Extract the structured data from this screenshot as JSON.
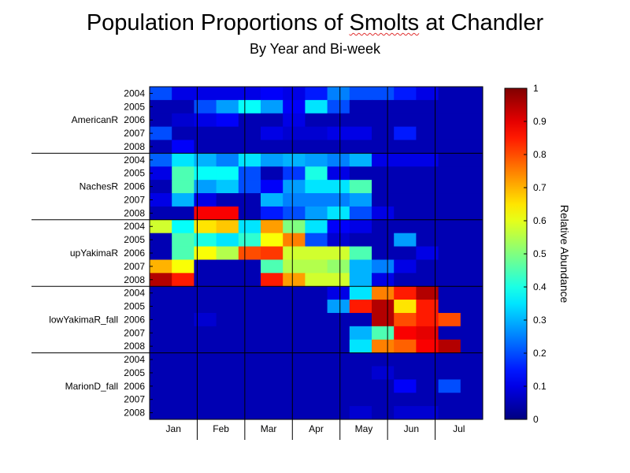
{
  "chart_data": {
    "type": "heatmap",
    "title_parts": [
      "Population Proportions of ",
      "Smolts",
      " at Chandler"
    ],
    "subtitle": "By Year and Bi-week",
    "xlabel": "",
    "ylabel": "",
    "months": [
      "Jan",
      "Feb",
      "Mar",
      "Apr",
      "May",
      "Jun",
      "Jul"
    ],
    "groups": [
      {
        "name": "AmericanR"
      },
      {
        "name": "NachesR"
      },
      {
        "name": "upYakimaR"
      },
      {
        "name": "lowYakimaR_fall"
      },
      {
        "name": "MarionD_fall"
      }
    ],
    "years": [
      "2004",
      "2005",
      "2006",
      "2007",
      "2008"
    ],
    "colorbar": {
      "label": "Relative Abundance",
      "min": 0,
      "max": 1,
      "ticks": [
        "0",
        "0.1",
        "0.2",
        "0.3",
        "0.4",
        "0.5",
        "0.6",
        "0.7",
        "0.8",
        "0.9",
        "1"
      ]
    },
    "colormap": "jet",
    "values": [
      [
        0.2,
        0.1,
        0.1,
        0.1,
        0.1,
        0.12,
        0.1,
        0.15,
        0.25,
        0.2,
        0.2,
        0.15,
        0.1,
        0.05,
        0.05
      ],
      [
        0.05,
        0.05,
        0.2,
        0.28,
        0.38,
        0.28,
        0.12,
        0.35,
        0.2,
        0.05,
        0.05,
        0.05,
        0.05,
        0.05,
        0.05
      ],
      [
        0.05,
        0.08,
        0.1,
        0.12,
        0.05,
        0.05,
        0.1,
        0.05,
        0.05,
        0.05,
        0.05,
        0.05,
        0.05,
        0.05,
        0.05
      ],
      [
        0.2,
        0.05,
        0.05,
        0.05,
        0.05,
        0.1,
        0.08,
        0.08,
        0.1,
        0.1,
        0.05,
        0.15,
        0.05,
        0.05,
        0.05
      ],
      [
        0.05,
        0.12,
        0.05,
        0.05,
        0.05,
        0.05,
        0.05,
        0.05,
        0.05,
        0.05,
        0.05,
        0.05,
        0.05,
        0.05,
        0.05
      ],
      [
        0.22,
        0.35,
        0.3,
        0.25,
        0.35,
        0.28,
        0.3,
        0.28,
        0.25,
        0.3,
        0.1,
        0.1,
        0.1,
        0.05,
        0.05
      ],
      [
        0.1,
        0.45,
        0.38,
        0.38,
        0.2,
        0.05,
        0.18,
        0.4,
        0.1,
        0.05,
        0.05,
        0.05,
        0.05,
        0.05,
        0.05
      ],
      [
        0.05,
        0.45,
        0.28,
        0.32,
        0.2,
        0.12,
        0.28,
        0.35,
        0.35,
        0.45,
        0.05,
        0.05,
        0.05,
        0.05,
        0.05
      ],
      [
        0.1,
        0.3,
        0.1,
        0.05,
        0.05,
        0.3,
        0.25,
        0.25,
        0.25,
        0.28,
        0.05,
        0.05,
        0.05,
        0.05,
        0.05
      ],
      [
        0.05,
        0.05,
        0.88,
        0.88,
        0.05,
        0.15,
        0.2,
        0.28,
        0.35,
        0.2,
        0.1,
        0.05,
        0.05,
        0.05,
        0.05
      ],
      [
        0.58,
        0.38,
        0.65,
        0.68,
        0.35,
        0.72,
        0.5,
        0.35,
        0.12,
        0.1,
        0.05,
        0.05,
        0.05,
        0.05,
        0.05
      ],
      [
        0.05,
        0.45,
        0.4,
        0.35,
        0.42,
        0.62,
        0.75,
        0.2,
        0.08,
        0.05,
        0.05,
        0.28,
        0.05,
        0.05,
        0.05
      ],
      [
        0.05,
        0.45,
        0.62,
        0.55,
        0.8,
        0.82,
        0.58,
        0.58,
        0.58,
        0.45,
        0.05,
        0.05,
        0.1,
        0.05,
        0.05
      ],
      [
        0.7,
        0.62,
        0.05,
        0.05,
        0.05,
        0.45,
        0.55,
        0.55,
        0.52,
        0.3,
        0.25,
        0.1,
        0.05,
        0.05,
        0.05
      ],
      [
        0.95,
        0.85,
        0.05,
        0.05,
        0.05,
        0.85,
        0.72,
        0.58,
        0.58,
        0.3,
        0.1,
        0.05,
        0.05,
        0.05,
        0.05
      ],
      [
        0.05,
        0.05,
        0.05,
        0.05,
        0.05,
        0.05,
        0.05,
        0.05,
        0.1,
        0.35,
        0.75,
        0.85,
        0.95,
        0.05,
        0.05
      ],
      [
        0.05,
        0.05,
        0.05,
        0.05,
        0.05,
        0.05,
        0.05,
        0.05,
        0.28,
        0.85,
        0.95,
        0.65,
        0.85,
        0.05,
        0.05
      ],
      [
        0.05,
        0.05,
        0.08,
        0.05,
        0.05,
        0.05,
        0.05,
        0.05,
        0.05,
        0.05,
        0.95,
        0.8,
        0.85,
        0.8,
        0.05
      ],
      [
        0.05,
        0.05,
        0.05,
        0.05,
        0.05,
        0.05,
        0.05,
        0.05,
        0.05,
        0.3,
        0.45,
        0.88,
        0.9,
        0.05,
        0.05
      ],
      [
        0.05,
        0.05,
        0.05,
        0.05,
        0.05,
        0.05,
        0.05,
        0.05,
        0.05,
        0.35,
        0.75,
        0.78,
        0.88,
        0.95,
        0.05
      ],
      [
        0.05,
        0.05,
        0.05,
        0.05,
        0.05,
        0.05,
        0.05,
        0.05,
        0.05,
        0.05,
        0.05,
        0.05,
        0.05,
        0.05,
        0.05
      ],
      [
        0.05,
        0.05,
        0.05,
        0.05,
        0.05,
        0.05,
        0.05,
        0.05,
        0.05,
        0.05,
        0.08,
        0.05,
        0.05,
        0.05,
        0.05
      ],
      [
        0.05,
        0.05,
        0.05,
        0.05,
        0.05,
        0.05,
        0.05,
        0.05,
        0.05,
        0.05,
        0.05,
        0.12,
        0.05,
        0.2,
        0.05
      ],
      [
        0.05,
        0.05,
        0.05,
        0.05,
        0.05,
        0.05,
        0.05,
        0.05,
        0.05,
        0.05,
        0.05,
        0.05,
        0.05,
        0.05,
        0.05
      ],
      [
        0.05,
        0.05,
        0.05,
        0.05,
        0.05,
        0.05,
        0.05,
        0.05,
        0.05,
        0.08,
        0.05,
        0.08,
        0.08,
        0.05,
        0.05
      ]
    ]
  }
}
